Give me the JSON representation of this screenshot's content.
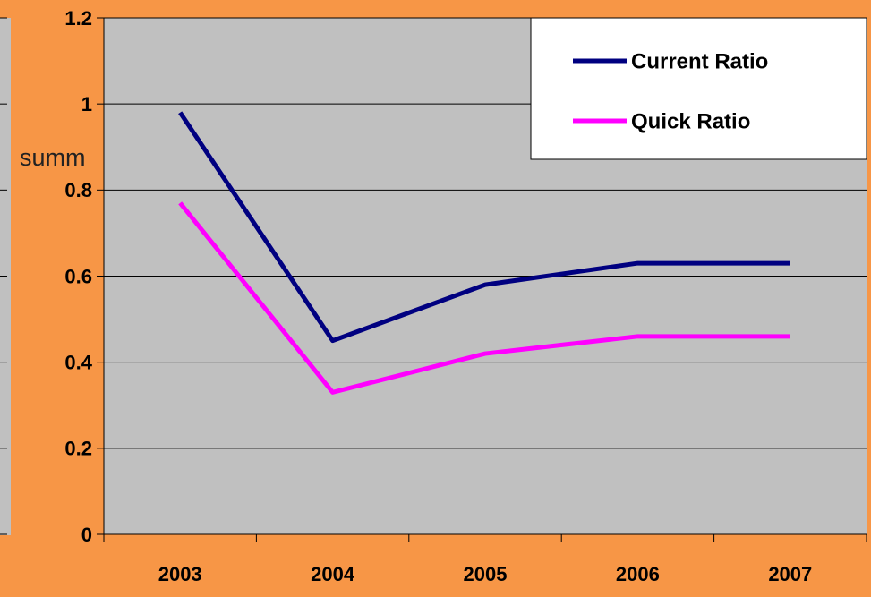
{
  "background_text": "summ",
  "chart_data": {
    "type": "line",
    "categories": [
      "2003",
      "2004",
      "2005",
      "2006",
      "2007"
    ],
    "series": [
      {
        "name": "Current Ratio",
        "color": "#000080",
        "values": [
          0.98,
          0.45,
          0.58,
          0.63,
          0.63
        ]
      },
      {
        "name": "Quick Ratio",
        "color": "#ff00ff",
        "values": [
          0.77,
          0.33,
          0.42,
          0.46,
          0.46
        ]
      }
    ],
    "ylim": [
      0,
      1.2
    ],
    "yticks": [
      0,
      0.2,
      0.4,
      0.6,
      0.8,
      1,
      1.2
    ],
    "grid": true,
    "legend": "top-right"
  }
}
